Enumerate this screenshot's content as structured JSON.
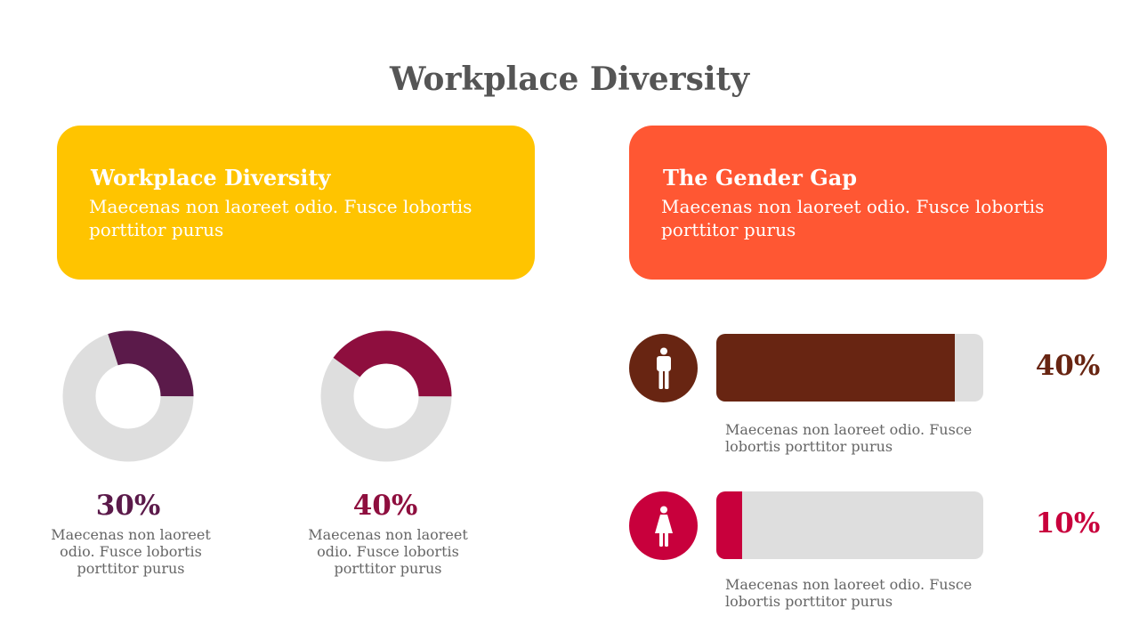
{
  "title": "Workplace Diversity",
  "cards": {
    "left": {
      "heading": "Workplace Diversity",
      "text": "Maecenas non laoreet odio. Fusce lobortis porttitor purus",
      "color": "#FFC400"
    },
    "right": {
      "heading": "The Gender Gap",
      "text": "Maecenas non laoreet odio. Fusce lobortis porttitor purus",
      "color": "#FF5733"
    }
  },
  "donuts": [
    {
      "value": 30,
      "label": "30%",
      "color": "#5B1A4A",
      "track": "#DEDEDE",
      "text": "Maecenas non laoreet odio. Fusce lobortis porttitor purus"
    },
    {
      "value": 40,
      "label": "40%",
      "color": "#8E0E3E",
      "track": "#DEDEDE",
      "text": "Maecenas non laoreet odio. Fusce lobortis porttitor purus"
    }
  ],
  "gender_bars": [
    {
      "icon": "male-person-icon",
      "value": 40,
      "label": "40%",
      "color": "#682512",
      "text": "Maecenas non laoreet odio. Fusce lobortis porttitor purus"
    },
    {
      "icon": "female-person-icon",
      "value": 10,
      "label": "10%",
      "color": "#C8003C",
      "text": "Maecenas non laoreet odio. Fusce lobortis porttitor purus"
    }
  ],
  "chart_data": [
    {
      "type": "pie",
      "categories": [
        "",
        ""
      ],
      "values": [
        30,
        70
      ],
      "title": "",
      "data_labels": [
        "30%"
      ]
    },
    {
      "type": "pie",
      "categories": [
        "",
        ""
      ],
      "values": [
        40,
        60
      ],
      "title": "",
      "data_labels": [
        "40%"
      ]
    },
    {
      "type": "bar",
      "categories": [
        "",
        ""
      ],
      "values": [
        40,
        10
      ],
      "title": "",
      "xlabel": "",
      "ylabel": "",
      "ylim": [
        0,
        100
      ]
    }
  ]
}
